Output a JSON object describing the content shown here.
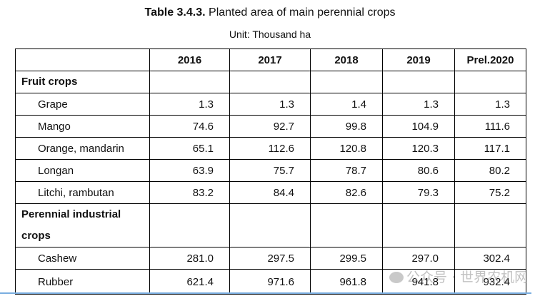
{
  "title": {
    "label": "Table 3.4.3.",
    "text": "Planted area of main perennial crops"
  },
  "unit": "Unit: Thousand ha",
  "table": {
    "headers": [
      "",
      "2016",
      "2017",
      "2018",
      "2019",
      "Prel.2020"
    ],
    "groups": [
      {
        "name": "Fruit crops",
        "rows": [
          {
            "label": "Grape",
            "values": [
              "1.3",
              "1.3",
              "1.4",
              "1.3",
              "1.3"
            ]
          },
          {
            "label": "Mango",
            "values": [
              "74.6",
              "92.7",
              "99.8",
              "104.9",
              "111.6"
            ]
          },
          {
            "label": "Orange, mandarin",
            "values": [
              "65.1",
              "112.6",
              "120.8",
              "120.3",
              "117.1"
            ]
          },
          {
            "label": "Longan",
            "values": [
              "63.9",
              "75.7",
              "78.7",
              "80.6",
              "80.2"
            ]
          },
          {
            "label": "Litchi, rambutan",
            "values": [
              "83.2",
              "84.4",
              "82.6",
              "79.3",
              "75.2"
            ]
          }
        ]
      },
      {
        "name": "Perennial industrial crops",
        "rows": [
          {
            "label": "Cashew",
            "values": [
              "281.0",
              "297.5",
              "299.5",
              "297.0",
              "302.4"
            ]
          },
          {
            "label": "Rubber",
            "values": [
              "621.4",
              "971.6",
              "961.8",
              "941.8",
              "932.4"
            ]
          }
        ]
      }
    ]
  },
  "watermark": {
    "icon": "wechat-icon",
    "text": "公众号 · 世界农机网"
  },
  "colors": {
    "bottom_line": "#7aaee0"
  }
}
